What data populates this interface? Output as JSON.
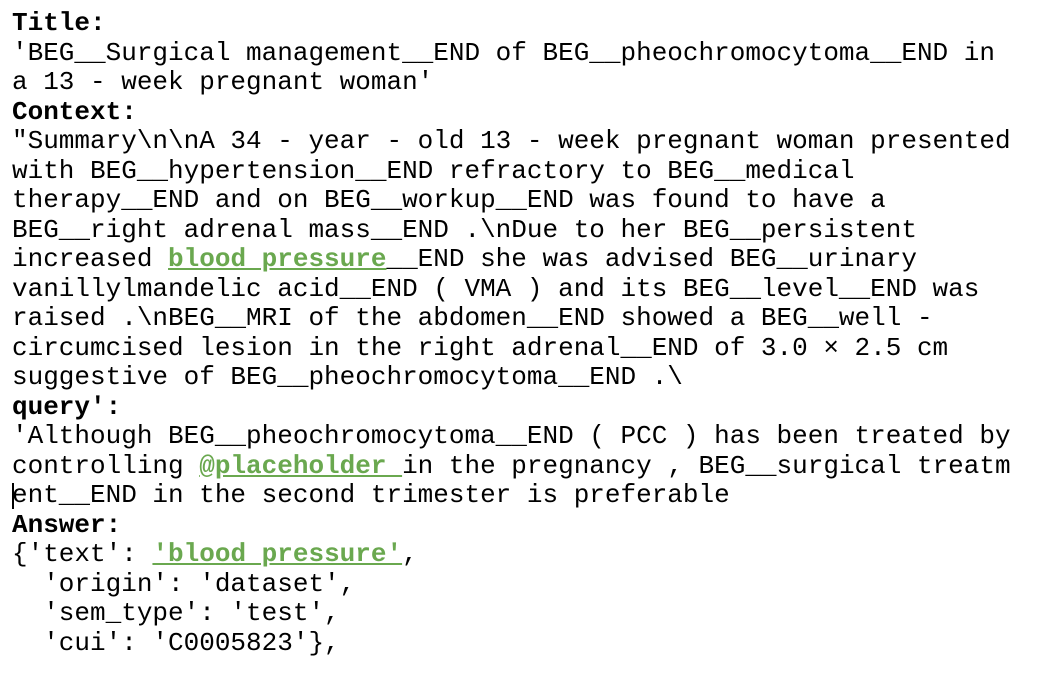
{
  "title": {
    "label": "Title:",
    "lines": [
      "'BEG__Surgical management__END of BEG__pheochromocytoma__END in",
      "a 13 - week pregnant woman'"
    ]
  },
  "context": {
    "label": "Context:",
    "lines": [
      "\"Summary\\n\\nA 34 - year - old 13 - week pregnant woman presented",
      "with BEG__hypertension__END refractory to BEG__medical",
      "therapy__END and on BEG__workup__END was found to have a",
      "BEG__right adrenal mass__END .\\nDue to her BEG__persistent",
      {
        "before": "increased ",
        "highlight": "blood pressure",
        "after": "__END she was advised BEG__urinary"
      },
      "vanillylmandelic acid__END ( VMA ) and its BEG__level__END was",
      "raised .\\nBEG__MRI of the abdomen__END showed a BEG__well -",
      "circumcised lesion in the right adrenal__END of 3.0 × 2.5 cm",
      "suggestive of BEG__pheochromocytoma__END .\\"
    ]
  },
  "query": {
    "label": "query':",
    "lines": [
      "'Although BEG__pheochromocytoma__END ( PCC ) has been treated by",
      {
        "before": "controlling ",
        "highlight": "@placeholder ",
        "after": "in the pregnancy , BEG__surgical treatm"
      },
      "ent__END in the second trimester is preferable"
    ]
  },
  "answer": {
    "label": "Answer:",
    "lines": [
      {
        "before": "{'text': ",
        "highlight": "'blood pressure'",
        "after": ","
      },
      "  'origin': 'dataset',",
      "  'sem_type': 'test',",
      "  'cui': 'C0005823'},"
    ]
  }
}
